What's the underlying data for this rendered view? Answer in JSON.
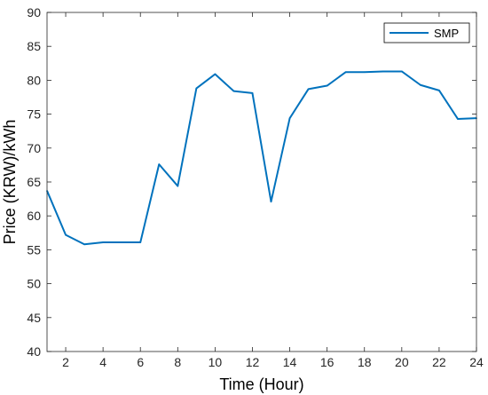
{
  "chart_data": {
    "type": "line",
    "xlabel": "Time (Hour)",
    "ylabel": "Price (KRW)/kWh",
    "xlim": [
      1,
      24
    ],
    "ylim": [
      40,
      90
    ],
    "xticks": [
      2,
      4,
      6,
      8,
      10,
      12,
      14,
      16,
      18,
      20,
      22,
      24
    ],
    "yticks": [
      40,
      45,
      50,
      55,
      60,
      65,
      70,
      75,
      80,
      85,
      90
    ],
    "grid": false,
    "legend_position": "top-right",
    "series": [
      {
        "name": "SMP",
        "color": "#0072BD",
        "x": [
          1,
          2,
          3,
          4,
          5,
          6,
          7,
          8,
          9,
          10,
          11,
          12,
          13,
          14,
          15,
          16,
          17,
          18,
          19,
          20,
          21,
          22,
          23,
          24
        ],
        "values": [
          63.7,
          57.2,
          55.8,
          56.1,
          56.1,
          56.1,
          67.6,
          64.4,
          78.8,
          80.9,
          78.4,
          78.1,
          62.1,
          74.4,
          78.7,
          79.2,
          81.2,
          81.2,
          81.3,
          81.3,
          79.3,
          78.5,
          74.3,
          74.4
        ]
      }
    ]
  }
}
